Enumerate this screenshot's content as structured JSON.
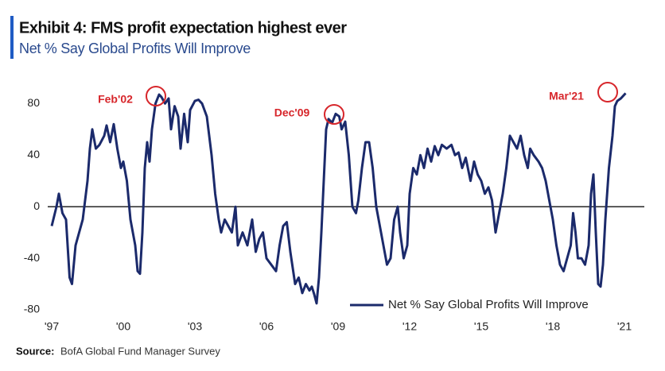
{
  "chart_data": {
    "type": "line",
    "title": "Exhibit 4: FMS profit expectation highest ever",
    "subtitle": "Net % Say Global Profits Will Improve",
    "source_label": "Source:",
    "source": "BofA Global Fund Manager Survey",
    "annotations": [
      "Feb'02",
      "Dec'09",
      "Mar'21"
    ],
    "legend": "lower right",
    "xlim": [
      1997,
      2021
    ],
    "ylim": [
      -80,
      95
    ],
    "yticks": [
      -80,
      -40,
      0,
      40,
      80
    ],
    "xticks": [
      {
        "value": 1997,
        "label": "'97"
      },
      {
        "value": 2000,
        "label": "'00"
      },
      {
        "value": 2003,
        "label": "'03"
      },
      {
        "value": 2006,
        "label": "'06"
      },
      {
        "value": 2009,
        "label": "'09"
      },
      {
        "value": 2012,
        "label": "'12"
      },
      {
        "value": 2015,
        "label": "'15"
      },
      {
        "value": 2018,
        "label": "'18"
      },
      {
        "value": 2021,
        "label": "'21"
      }
    ],
    "x": [
      1997.0,
      1997.2,
      1997.3,
      1997.45,
      1997.6,
      1997.75,
      1997.85,
      1998.0,
      1998.3,
      1998.5,
      1998.6,
      1998.7,
      1998.85,
      1999.0,
      1999.2,
      1999.3,
      1999.45,
      1999.6,
      1999.75,
      1999.9,
      2000.0,
      2000.15,
      2000.3,
      2000.5,
      2000.6,
      2000.7,
      2000.8,
      2000.9,
      2001.0,
      2001.1,
      2001.2,
      2001.35,
      2001.5,
      2001.6,
      2001.75,
      2001.9,
      2002.0,
      2002.15,
      2002.3,
      2002.4,
      2002.55,
      2002.7,
      2002.8,
      2003.0,
      2003.15,
      2003.3,
      2003.5,
      2003.7,
      2003.85,
      2004.0,
      2004.1,
      2004.25,
      2004.4,
      2004.55,
      2004.7,
      2004.8,
      2005.0,
      2005.2,
      2005.4,
      2005.55,
      2005.7,
      2005.85,
      2006.0,
      2006.2,
      2006.4,
      2006.55,
      2006.7,
      2006.85,
      2007.0,
      2007.2,
      2007.35,
      2007.5,
      2007.65,
      2007.8,
      2007.9,
      2008.0,
      2008.1,
      2008.2,
      2008.3,
      2008.4,
      2008.5,
      2008.6,
      2008.75,
      2008.9,
      2009.05,
      2009.15,
      2009.3,
      2009.45,
      2009.6,
      2009.75,
      2009.85,
      2010.0,
      2010.15,
      2010.3,
      2010.45,
      2010.6,
      2010.75,
      2010.9,
      2011.05,
      2011.2,
      2011.35,
      2011.5,
      2011.6,
      2011.75,
      2011.9,
      2012.0,
      2012.15,
      2012.3,
      2012.45,
      2012.6,
      2012.75,
      2012.9,
      2013.05,
      2013.2,
      2013.35,
      2013.55,
      2013.75,
      2013.9,
      2014.05,
      2014.2,
      2014.35,
      2014.55,
      2014.7,
      2014.85,
      2015.0,
      2015.15,
      2015.3,
      2015.45,
      2015.6,
      2015.75,
      2015.9,
      2016.05,
      2016.2,
      2016.35,
      2016.5,
      2016.65,
      2016.8,
      2016.95,
      2017.05,
      2017.2,
      2017.4,
      2017.55,
      2017.7,
      2017.85,
      2018.0,
      2018.15,
      2018.3,
      2018.45,
      2018.6,
      2018.75,
      2018.85,
      2018.95,
      2019.05,
      2019.2,
      2019.35,
      2019.5,
      2019.6,
      2019.7,
      2019.8,
      2019.9,
      2020.0,
      2020.1,
      2020.2,
      2020.35,
      2020.5,
      2020.6,
      2020.7,
      2020.85,
      2020.95,
      2021.05
    ],
    "series": [
      {
        "name": "Net % Say Global Profits Will Improve",
        "color": "#1b2a6b",
        "values": [
          -15,
          0,
          10,
          -5,
          -10,
          -55,
          -60,
          -30,
          -10,
          20,
          45,
          60,
          45,
          48,
          55,
          63,
          50,
          64,
          45,
          30,
          35,
          20,
          -10,
          -30,
          -50,
          -52,
          -20,
          30,
          50,
          35,
          60,
          80,
          87,
          85,
          80,
          84,
          60,
          78,
          70,
          45,
          72,
          50,
          75,
          82,
          83,
          80,
          70,
          40,
          10,
          -10,
          -20,
          -10,
          -15,
          -20,
          0,
          -30,
          -20,
          -30,
          -10,
          -35,
          -25,
          -20,
          -40,
          -45,
          -50,
          -30,
          -15,
          -12,
          -35,
          -60,
          -55,
          -67,
          -60,
          -65,
          -62,
          -68,
          -75,
          -55,
          -20,
          20,
          60,
          68,
          65,
          72,
          70,
          60,
          66,
          40,
          0,
          -5,
          5,
          30,
          50,
          50,
          30,
          0,
          -15,
          -30,
          -45,
          -40,
          -10,
          0,
          -20,
          -40,
          -30,
          10,
          30,
          25,
          40,
          30,
          45,
          35,
          47,
          40,
          48,
          45,
          48,
          40,
          42,
          30,
          38,
          20,
          35,
          25,
          20,
          10,
          15,
          5,
          -20,
          -5,
          10,
          30,
          55,
          50,
          45,
          55,
          40,
          30,
          45,
          40,
          35,
          30,
          20,
          5,
          -10,
          -30,
          -45,
          -50,
          -40,
          -30,
          -5,
          -20,
          -40,
          -40,
          -45,
          -30,
          10,
          25,
          -20,
          -60,
          -62,
          -45,
          -10,
          30,
          55,
          78,
          82,
          84,
          86,
          88
        ]
      }
    ]
  }
}
